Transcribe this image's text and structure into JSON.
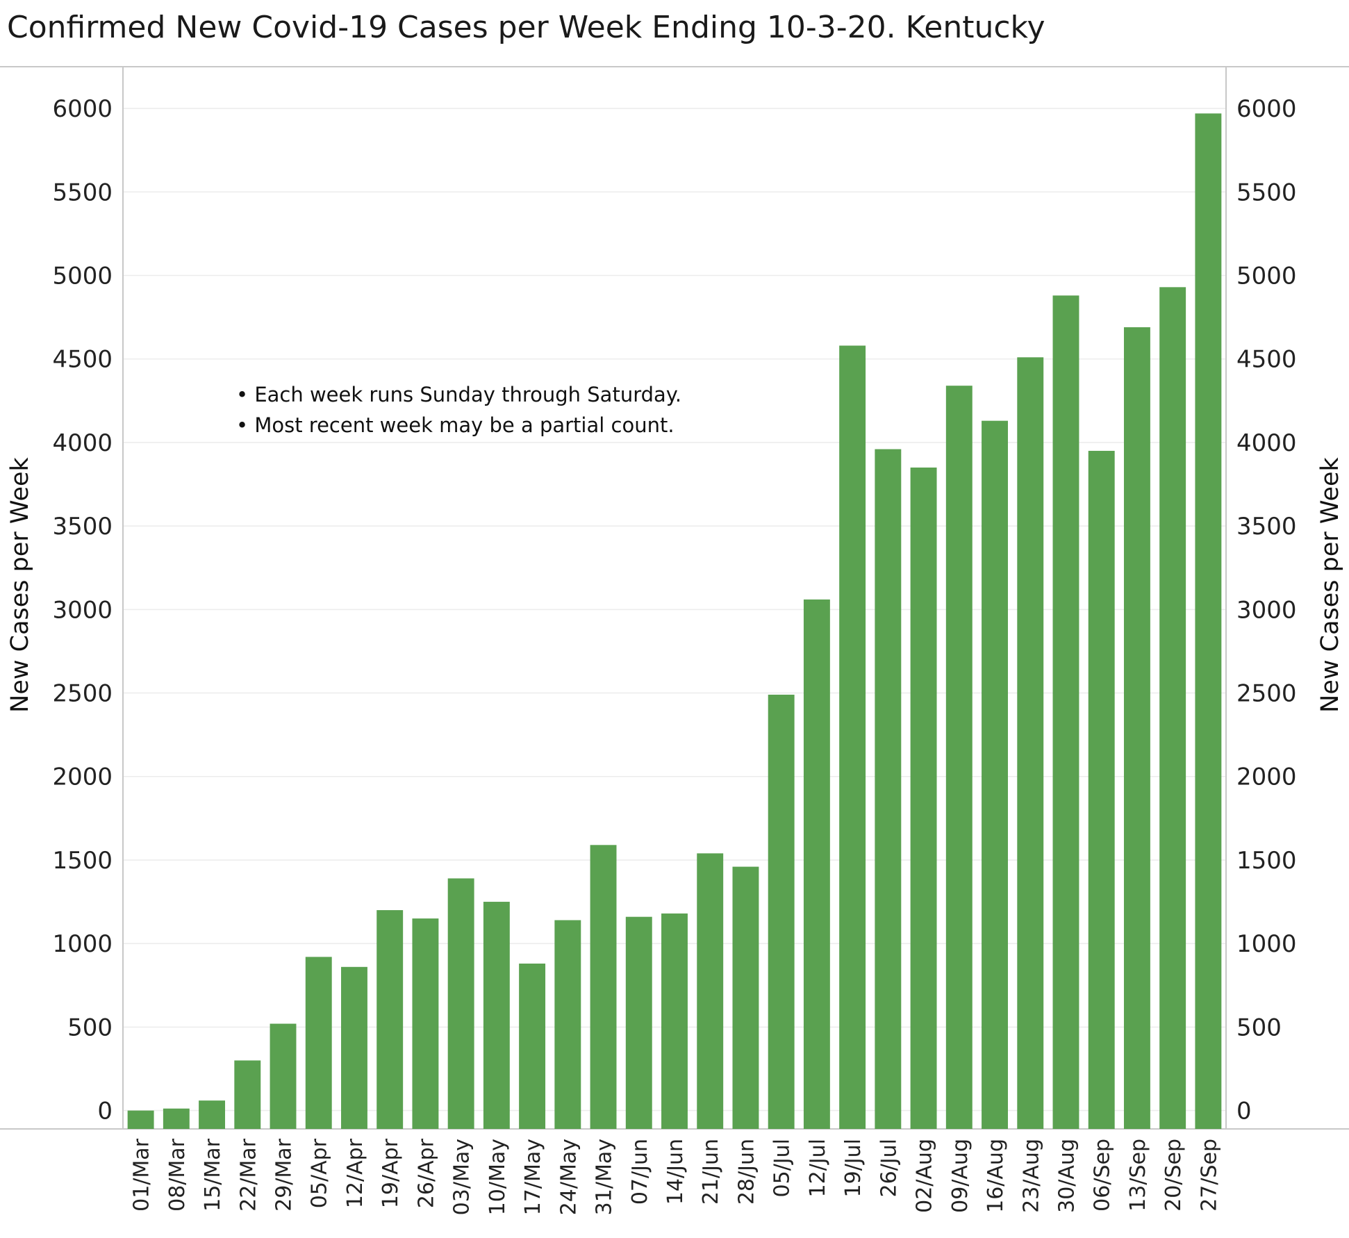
{
  "chart_data": {
    "type": "bar",
    "title": "Confirmed New Covid-19 Cases per Week Ending 10-3-20. Kentucky",
    "xlabel": "",
    "ylabel": "New Cases per Week",
    "ylabel_right": "New Cases per Week",
    "ylim": [
      -110,
      6250
    ],
    "yticks": [
      0,
      500,
      1000,
      1500,
      2000,
      2500,
      3000,
      3500,
      4000,
      4500,
      5000,
      5500,
      6000
    ],
    "grid": true,
    "legend": "none",
    "bar_color": "#5aa150",
    "categories": [
      "01/Mar",
      "08/Mar",
      "15/Mar",
      "22/Mar",
      "29/Mar",
      "05/Apr",
      "12/Apr",
      "19/Apr",
      "26/Apr",
      "03/May",
      "10/May",
      "17/May",
      "24/May",
      "31/May",
      "07/Jun",
      "14/Jun",
      "21/Jun",
      "28/Jun",
      "05/Jul",
      "12/Jul",
      "19/Jul",
      "26/Jul",
      "02/Aug",
      "09/Aug",
      "16/Aug",
      "23/Aug",
      "30/Aug",
      "06/Sep",
      "13/Sep",
      "20/Sep",
      "27/Sep"
    ],
    "values": [
      0,
      12,
      60,
      300,
      520,
      920,
      860,
      1200,
      1150,
      1390,
      1250,
      880,
      1140,
      1590,
      1160,
      1180,
      1540,
      1460,
      2490,
      3060,
      4580,
      3960,
      3850,
      4340,
      4130,
      4510,
      4880,
      3950,
      4690,
      4930,
      5970
    ],
    "annotations": [
      "• Each week runs Sunday through Saturday.",
      "• Most recent week may be a partial count."
    ]
  }
}
